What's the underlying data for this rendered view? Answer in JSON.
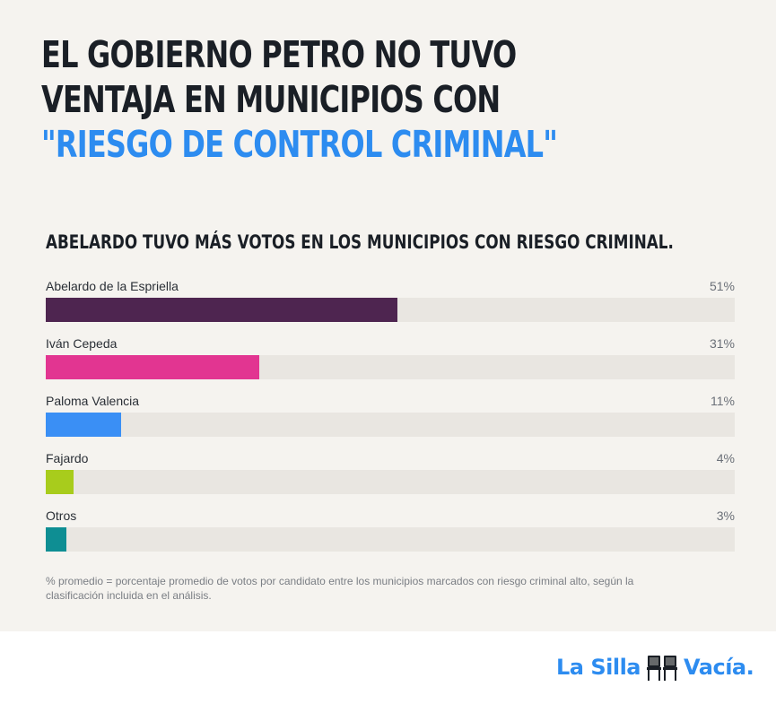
{
  "headline": {
    "line1": "EL GOBIERNO PETRO NO TUVO",
    "line2": "VENTAJA EN MUNICIPIOS CON",
    "line3": "\"RIESGO DE CONTROL CRIMINAL\""
  },
  "colors": {
    "accent": "#2d8cf0",
    "track": "#e9e6e1"
  },
  "chart_data": {
    "type": "bar",
    "orientation": "horizontal",
    "title": "ABELARDO TUVO MÁS VOTOS EN LOS MUNICIPIOS CON RIESGO CRIMINAL.",
    "xlim": [
      0,
      100
    ],
    "categories": [
      "Abelardo de la Espriella",
      "Iván Cepeda",
      "Paloma Valencia",
      "Fajardo",
      "Otros"
    ],
    "values": [
      51,
      31,
      11,
      4,
      3
    ],
    "value_labels": [
      "51%",
      "31%",
      "11%",
      "4%",
      "3%"
    ],
    "colors": [
      "#4e2550",
      "#e23591",
      "#3a8ff5",
      "#a8cc1c",
      "#0e8e93"
    ],
    "grid": false,
    "legend": "none"
  },
  "footnote": "% promedio = porcentaje promedio de votos por candidato entre los municipios marcados con riesgo criminal alto, según la clasificación incluida en el análisis.",
  "logo": {
    "part1": "La Silla",
    "part2": "Vacía.",
    "icon": "chairs-icon"
  }
}
